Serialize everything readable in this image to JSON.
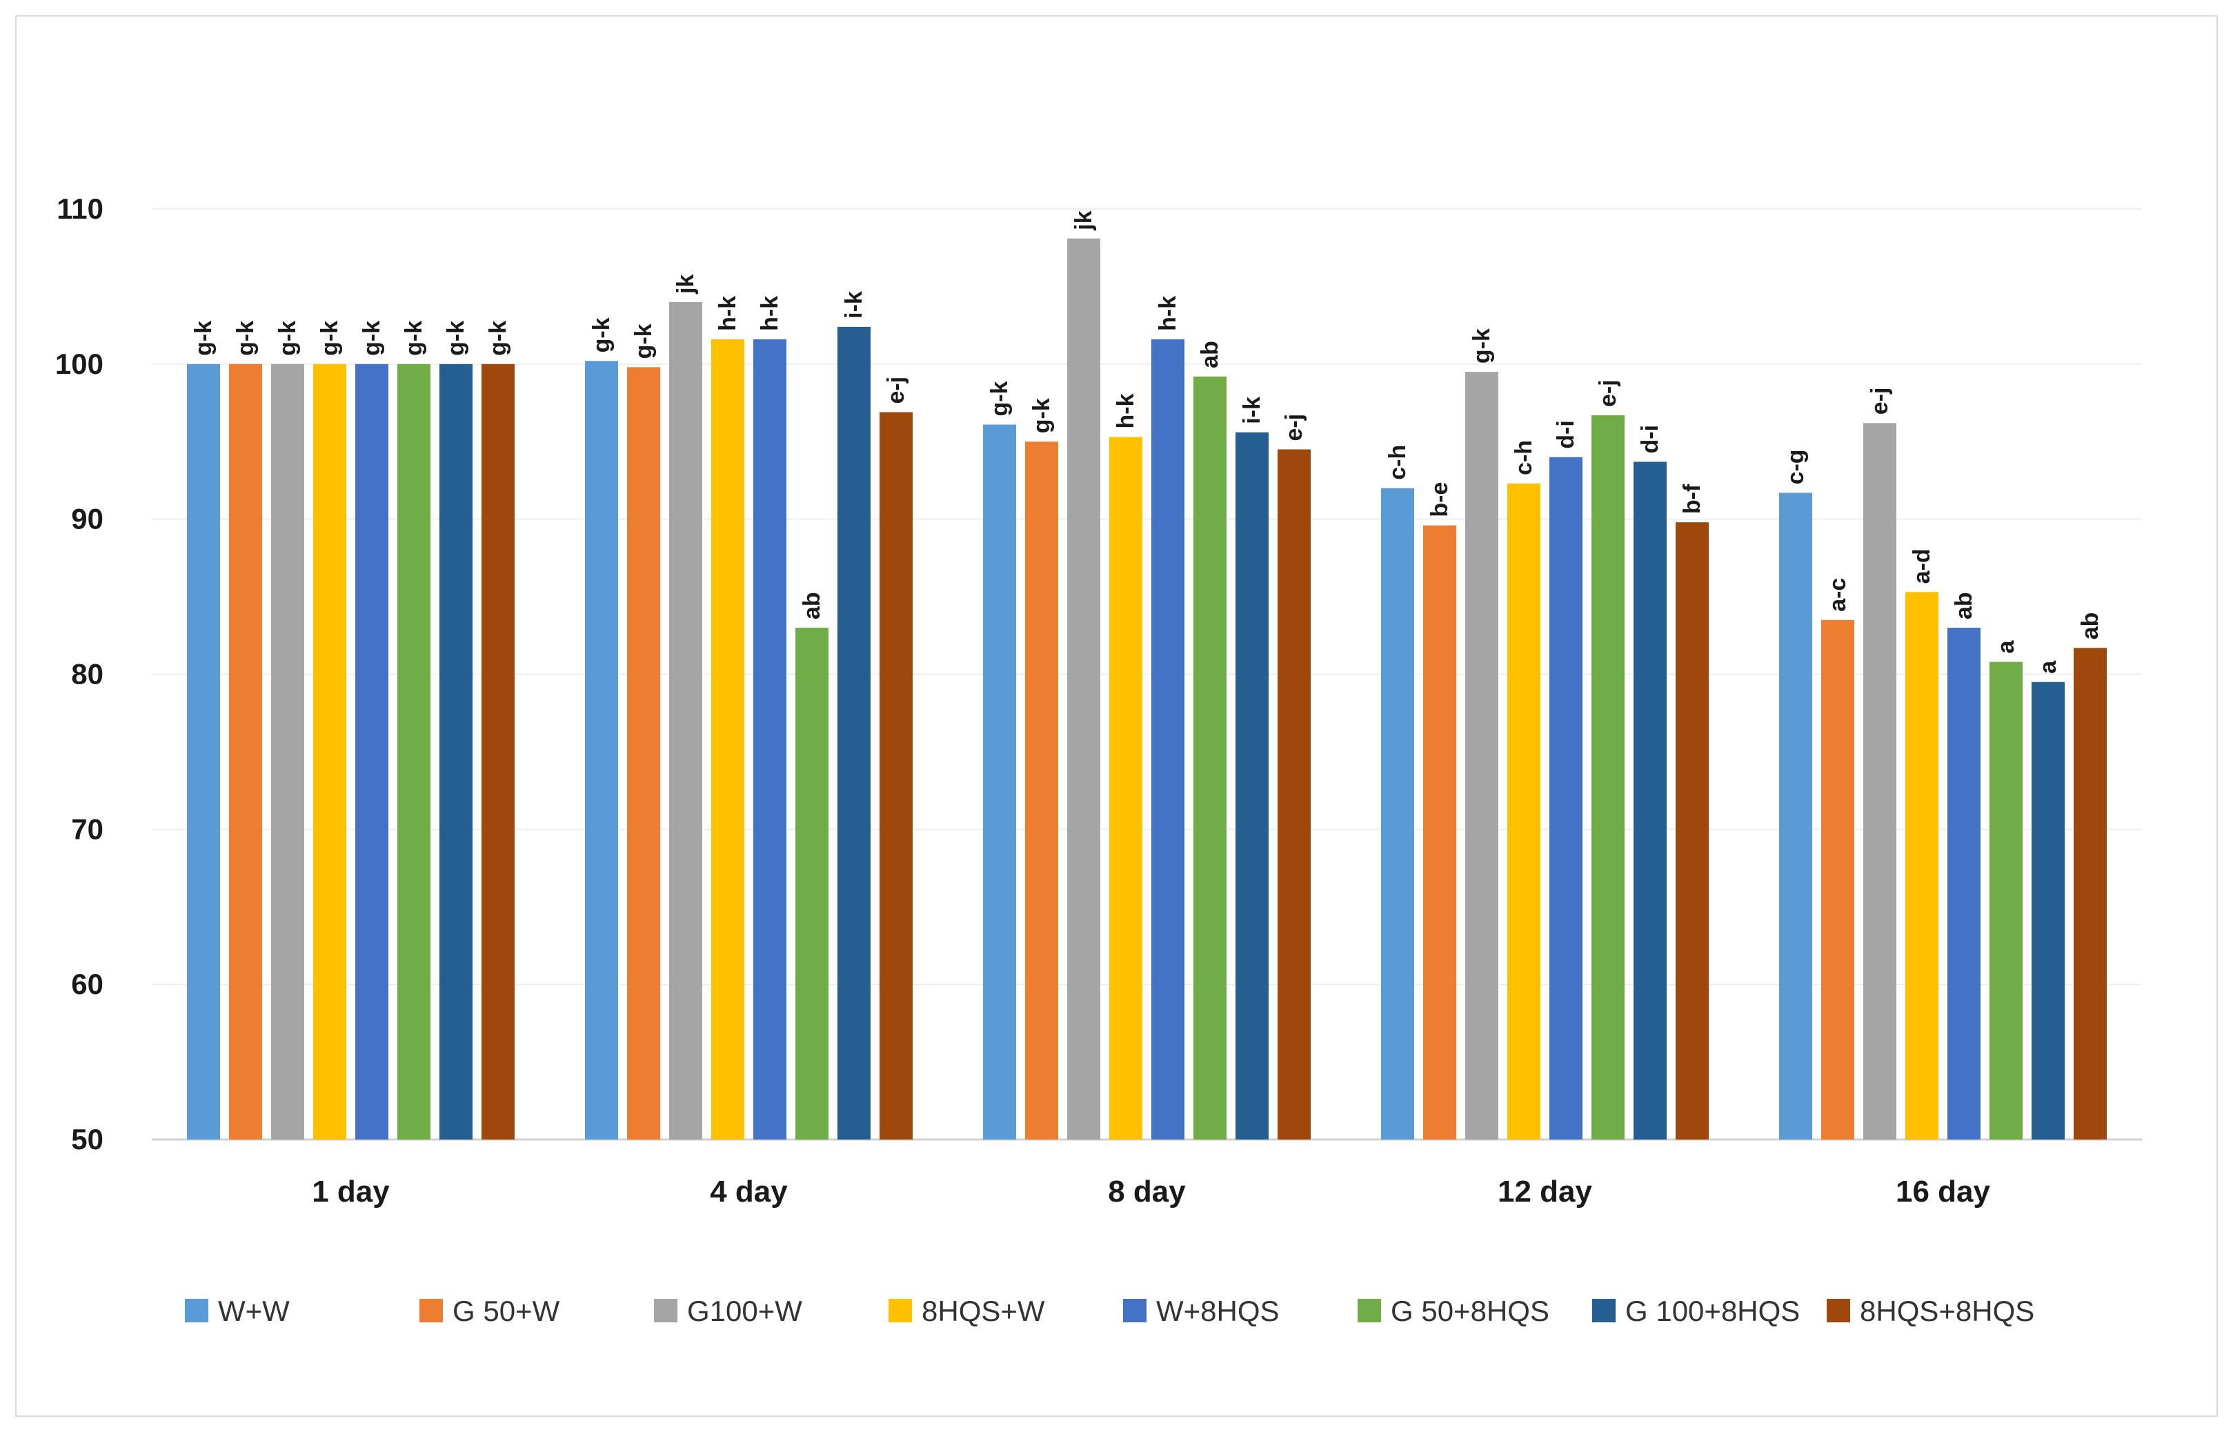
{
  "chart_data": {
    "type": "bar",
    "title": "",
    "xlabel": "",
    "ylabel": "",
    "ylim": [
      50,
      110
    ],
    "yticks": [
      50,
      60,
      70,
      80,
      90,
      100,
      110
    ],
    "grid": true,
    "legend_position": "bottom",
    "categories": [
      "1 day",
      "4 day",
      "8 day",
      "12 day",
      "16 day"
    ],
    "series": [
      {
        "name": "W+W",
        "color": "#5b9bd5",
        "values": [
          100,
          100.2,
          96.1,
          92.0,
          91.7
        ],
        "labels": [
          "g-k",
          "g-k",
          "g-k",
          "c-h",
          "c-g"
        ]
      },
      {
        "name": "G 50+W",
        "color": "#ed7d31",
        "values": [
          100,
          99.8,
          95.0,
          89.6,
          83.5
        ],
        "labels": [
          "g-k",
          "g-k",
          "g-k",
          "b-e",
          "a-c"
        ]
      },
      {
        "name": "G100+W",
        "color": "#a5a5a5",
        "values": [
          100,
          104.0,
          108.1,
          99.5,
          96.2
        ],
        "labels": [
          "g-k",
          "jk",
          "jk",
          "g-k",
          "e-j"
        ]
      },
      {
        "name": "8HQS+W",
        "color": "#ffc000",
        "values": [
          100,
          101.6,
          95.3,
          92.3,
          85.3
        ],
        "labels": [
          "g-k",
          "h-k",
          "h-k",
          "c-h",
          "a-d"
        ]
      },
      {
        "name": "W+8HQS",
        "color": "#4472c4",
        "values": [
          100,
          101.6,
          101.6,
          94.0,
          83.0
        ],
        "labels": [
          "g-k",
          "h-k",
          "h-k",
          "d-i",
          "ab"
        ]
      },
      {
        "name": "G 50+8HQS",
        "color": "#70ad47",
        "values": [
          100,
          83.0,
          99.2,
          96.7,
          80.8
        ],
        "labels": [
          "g-k",
          "ab",
          "ab",
          "e-j",
          "a"
        ]
      },
      {
        "name": "G 100+8HQS",
        "color": "#255e91",
        "values": [
          100,
          102.4,
          95.6,
          93.7,
          79.5
        ],
        "labels": [
          "g-k",
          "i-k",
          "i-k",
          "d-i",
          "a"
        ]
      },
      {
        "name": "8HQS+8HQS",
        "color": "#9e480e",
        "values": [
          100,
          96.9,
          94.5,
          89.8,
          81.7
        ],
        "labels": [
          "g-k",
          "e-j",
          "e-j",
          "b-f",
          "ab"
        ]
      }
    ]
  }
}
